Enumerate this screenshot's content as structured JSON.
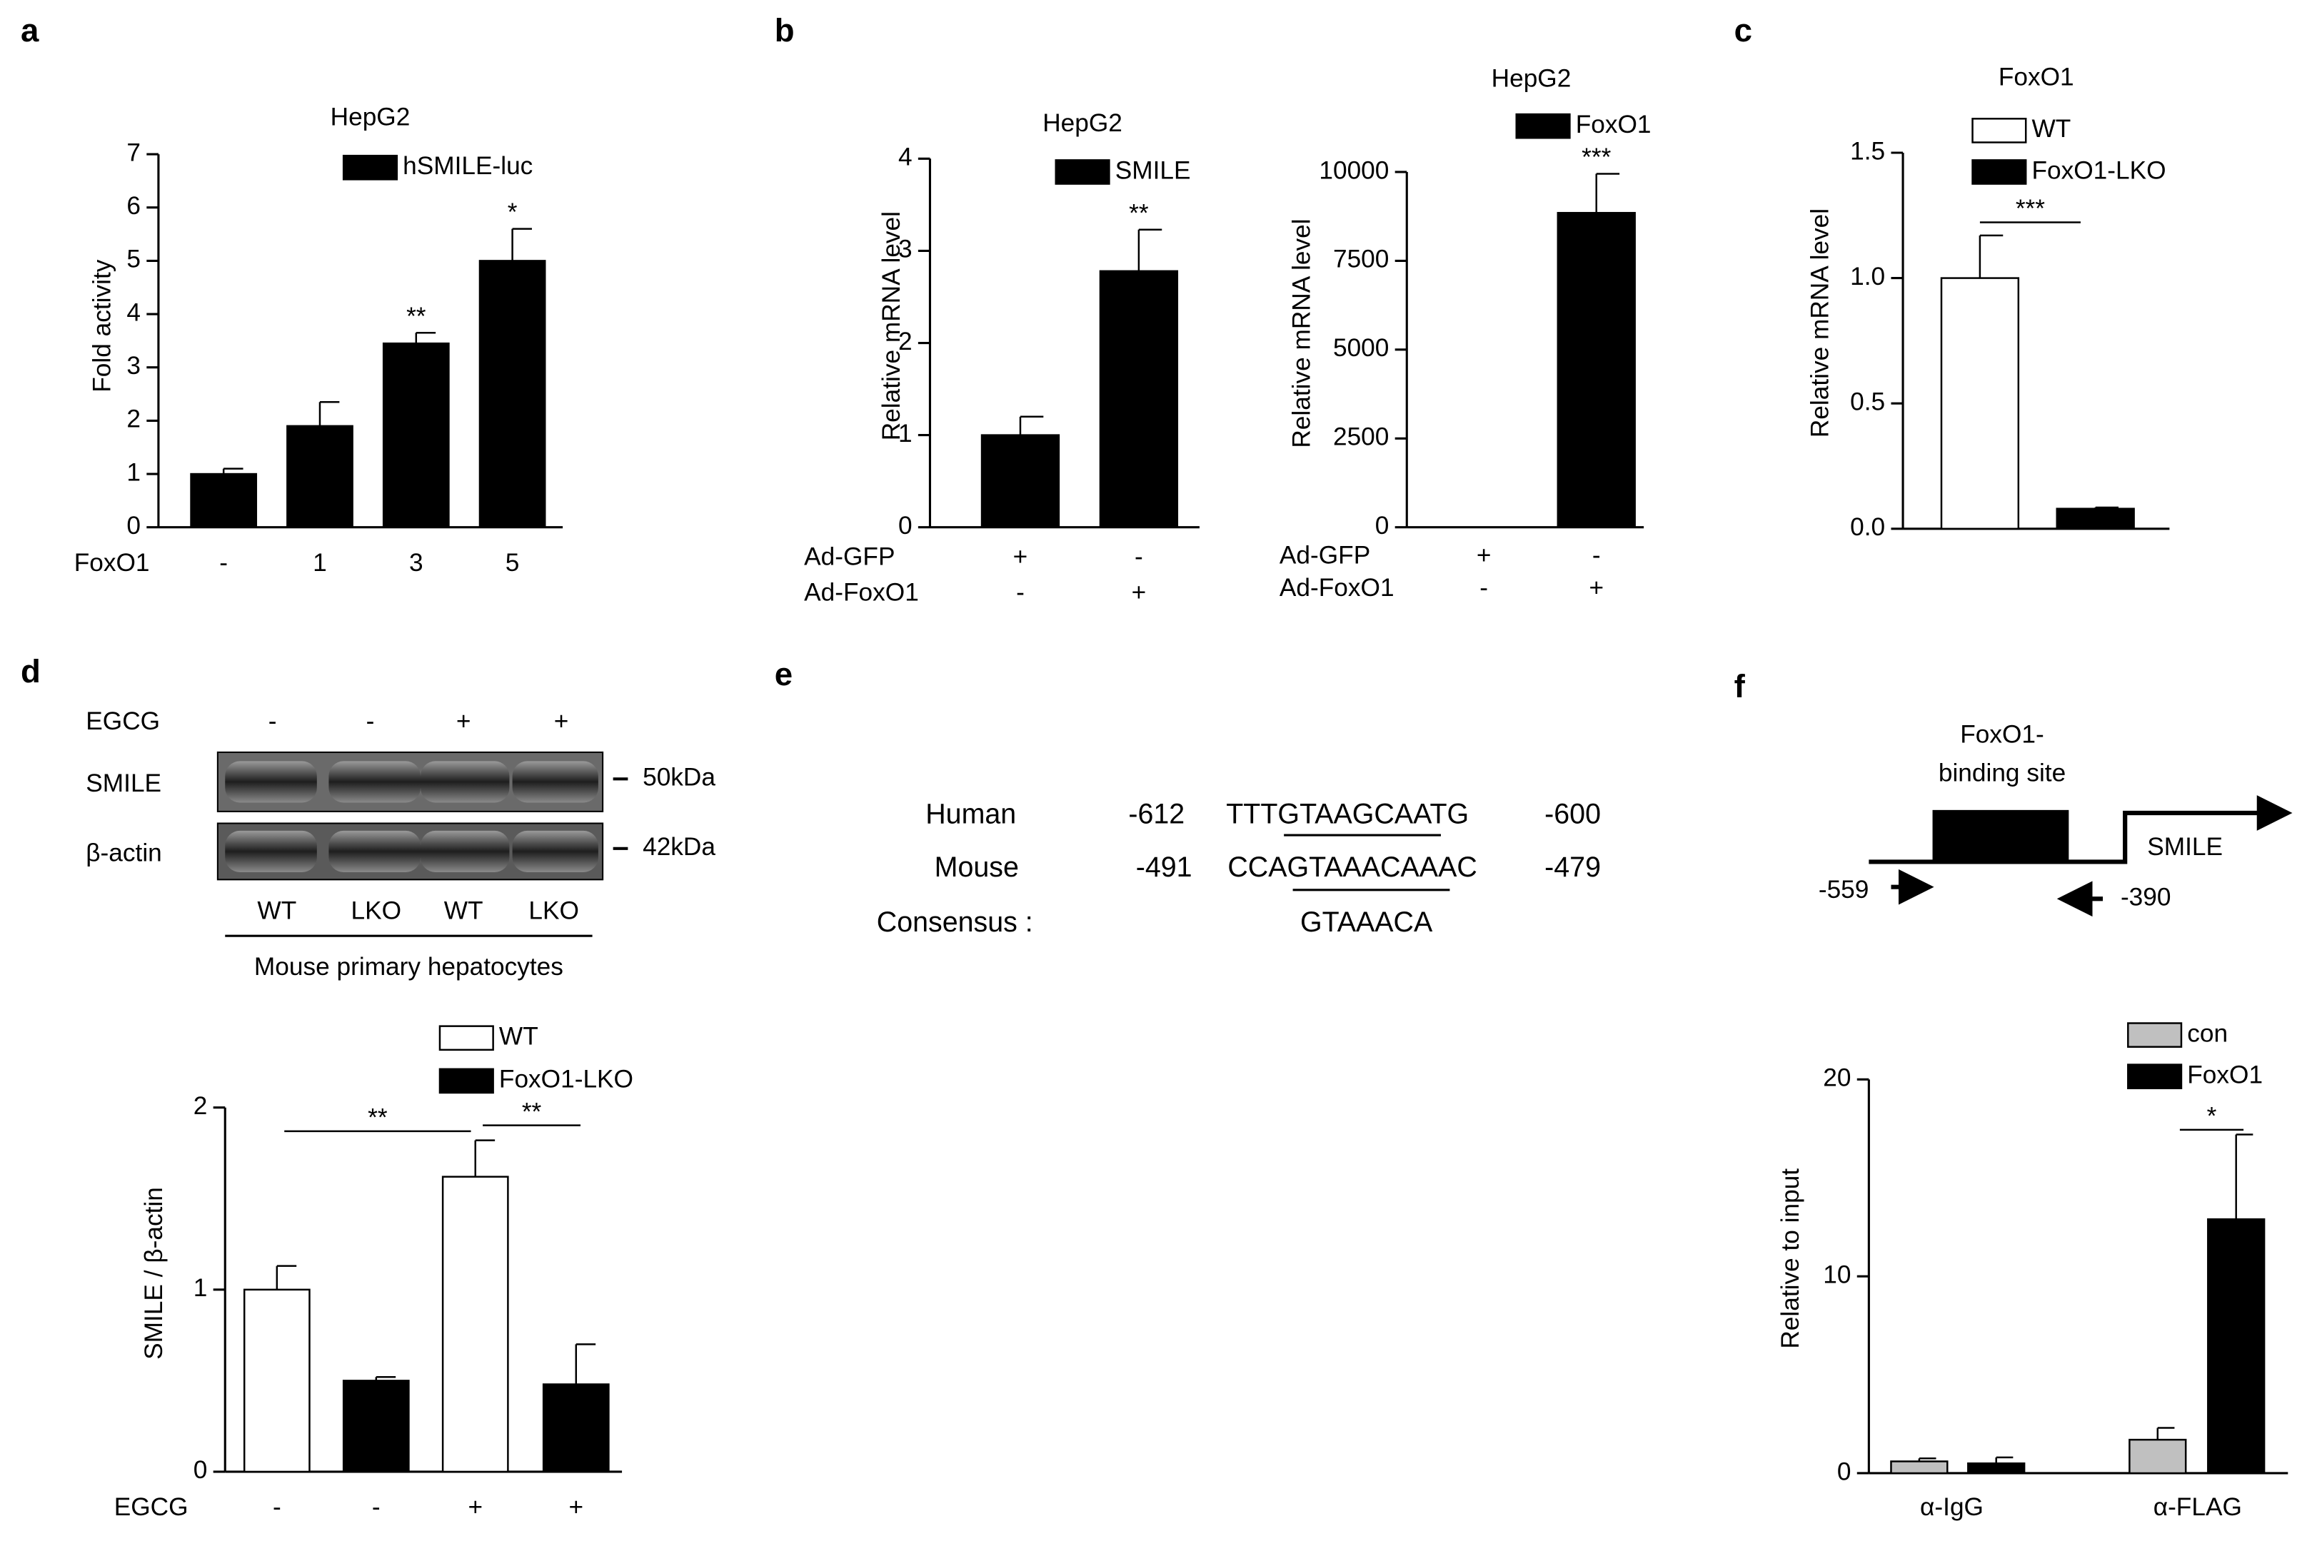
{
  "panel_labels": [
    "a",
    "b",
    "c",
    "d",
    "e",
    "f"
  ],
  "chart_data": [
    {
      "type": "bar",
      "title": "HepG2",
      "ylabel": "Fold activity",
      "ylim": [
        0,
        7
      ],
      "yticks": [
        0,
        1,
        2,
        3,
        4,
        5,
        6,
        7
      ],
      "rows": [
        {
          "label": "FoxO1",
          "values": [
            "-",
            "1",
            "3",
            "5"
          ]
        }
      ],
      "series": [
        {
          "name": "hSMILE-luc",
          "color": "#000000",
          "values": [
            1,
            1.9,
            3.45,
            5
          ],
          "errors": [
            0.1,
            0.45,
            0.2,
            0.6
          ],
          "significance": [
            null,
            null,
            "**",
            "*"
          ]
        }
      ]
    },
    {
      "type": "bar",
      "title": "HepG2",
      "ylabel": "Relative mRNA level",
      "ylim": [
        0,
        4
      ],
      "yticks": [
        0,
        1,
        2,
        3,
        4
      ],
      "rows": [
        {
          "label": "Ad-GFP",
          "values": [
            "+",
            "-"
          ]
        },
        {
          "label": "Ad-FoxO1",
          "values": [
            "-",
            "+"
          ]
        }
      ],
      "series": [
        {
          "name": "SMILE",
          "color": "#000000",
          "values": [
            1,
            2.78
          ],
          "errors": [
            0.2,
            0.45
          ],
          "significance": [
            null,
            "**"
          ]
        }
      ]
    },
    {
      "type": "bar",
      "title": "HepG2",
      "ylabel": "Relative mRNA level",
      "ylim": [
        0,
        10000
      ],
      "yticks": [
        0,
        2500,
        5000,
        7500,
        10000
      ],
      "rows": [
        {
          "label": "Ad-GFP",
          "values": [
            "+",
            "-"
          ]
        },
        {
          "label": "Ad-FoxO1",
          "values": [
            "-",
            "+"
          ]
        }
      ],
      "series": [
        {
          "name": "FoxO1",
          "color": "#000000",
          "values": [
            0,
            8850
          ],
          "errors": [
            0,
            1100
          ],
          "significance": [
            null,
            "***"
          ]
        }
      ]
    },
    {
      "type": "bar",
      "title": "FoxO1",
      "ylabel": "Relative mRNA level",
      "ylim": [
        0,
        1.5
      ],
      "yticks": [
        {
          "value": 0,
          "label": "0.0"
        },
        {
          "value": 0.5,
          "label": "0.5"
        },
        {
          "value": 1,
          "label": "1.0"
        },
        {
          "value": 1.5,
          "label": "1.5"
        }
      ],
      "brackets": [
        "***"
      ],
      "series": [
        {
          "name": "WT",
          "color": "#ffffff",
          "values": [
            1.0
          ],
          "errors": [
            0.17
          ]
        },
        {
          "name": "FoxO1-LKO",
          "color": "#000000",
          "values": [
            0.08
          ],
          "errors": [
            0.005
          ]
        }
      ]
    },
    {
      "type": "bar",
      "ylabel": "SMILE / β-actin",
      "ylim": [
        0,
        2
      ],
      "yticks": [
        0,
        1,
        2
      ],
      "rows": [
        {
          "label": "EGCG",
          "values": [
            "-",
            "-",
            "+",
            "+"
          ]
        }
      ],
      "brackets": [
        "**",
        "**"
      ],
      "series": [
        {
          "name": "WT",
          "color": "#ffffff",
          "values": [
            1.0,
            1.62
          ],
          "errors": [
            0.13,
            0.2
          ]
        },
        {
          "name": "FoxO1-LKO",
          "color": "#000000",
          "values": [
            0.5,
            0.48
          ],
          "errors": [
            0.02,
            0.22
          ]
        }
      ]
    },
    {
      "type": "bar",
      "ylabel": "Relative to input",
      "ylim": [
        0,
        20
      ],
      "yticks": [
        0,
        10,
        20
      ],
      "categories": [
        "α-IgG",
        "α-FLAG"
      ],
      "brackets": [
        "*"
      ],
      "series": [
        {
          "name": "con",
          "color": "#c0c0c0",
          "values": [
            0.6,
            1.7
          ],
          "errors": [
            0.15,
            0.6
          ]
        },
        {
          "name": "FoxO1",
          "color": "#000000",
          "values": [
            0.5,
            12.9
          ],
          "errors": [
            0.3,
            4.3
          ]
        }
      ]
    }
  ],
  "blot": {
    "treatment": "EGCG",
    "lanes": [
      "-",
      "-",
      "+",
      "+"
    ],
    "rows": [
      {
        "label": "SMILE",
        "size": "50kDa"
      },
      {
        "label": "β-actin",
        "size": "42kDa"
      }
    ],
    "genotypes": [
      "WT",
      "LKO",
      "WT",
      "LKO"
    ],
    "caption": "Mouse primary hepatocytes"
  },
  "alignment": {
    "rows": [
      {
        "species": "Human",
        "start": "-612",
        "sequence": "TTTGTAAGCAATG",
        "end": "-600"
      },
      {
        "species": "Mouse",
        "start": "-491",
        "sequence": "CCAGTAAACAAAC",
        "end": "-479"
      }
    ],
    "consensus": {
      "label": "Consensus :",
      "sequence": "GTAAACA"
    }
  },
  "diagram": {
    "site": [
      "FoxO1-",
      "binding site"
    ],
    "gene": "SMILE",
    "primers": [
      "-559",
      "-390"
    ]
  }
}
